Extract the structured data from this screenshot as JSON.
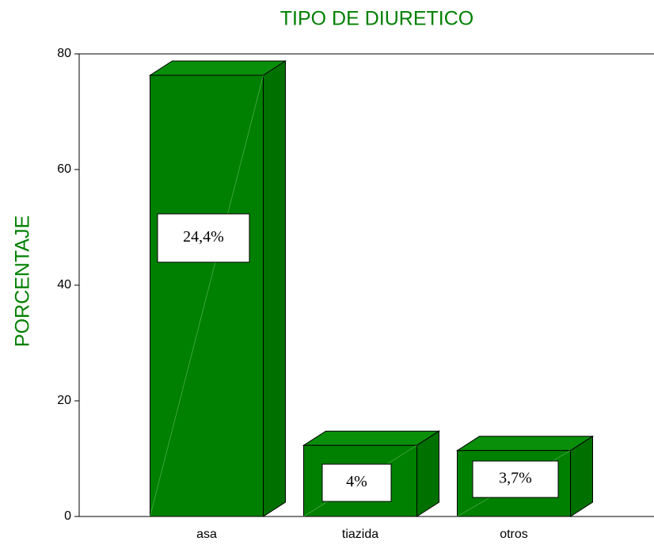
{
  "chart_data": {
    "type": "bar3d",
    "title": "TIPO DE DIURETICO",
    "y_label": "PORCENTAJE",
    "categories": [
      "asa",
      "tiazida",
      "otros"
    ],
    "values": [
      76.3,
      12.3,
      11.4
    ],
    "color": "#008000",
    "annotations": [
      "24,4%",
      "4%",
      "3,7%"
    ],
    "ylim": [
      0,
      80
    ],
    "yticks": [
      0,
      20,
      40,
      60,
      80
    ]
  }
}
